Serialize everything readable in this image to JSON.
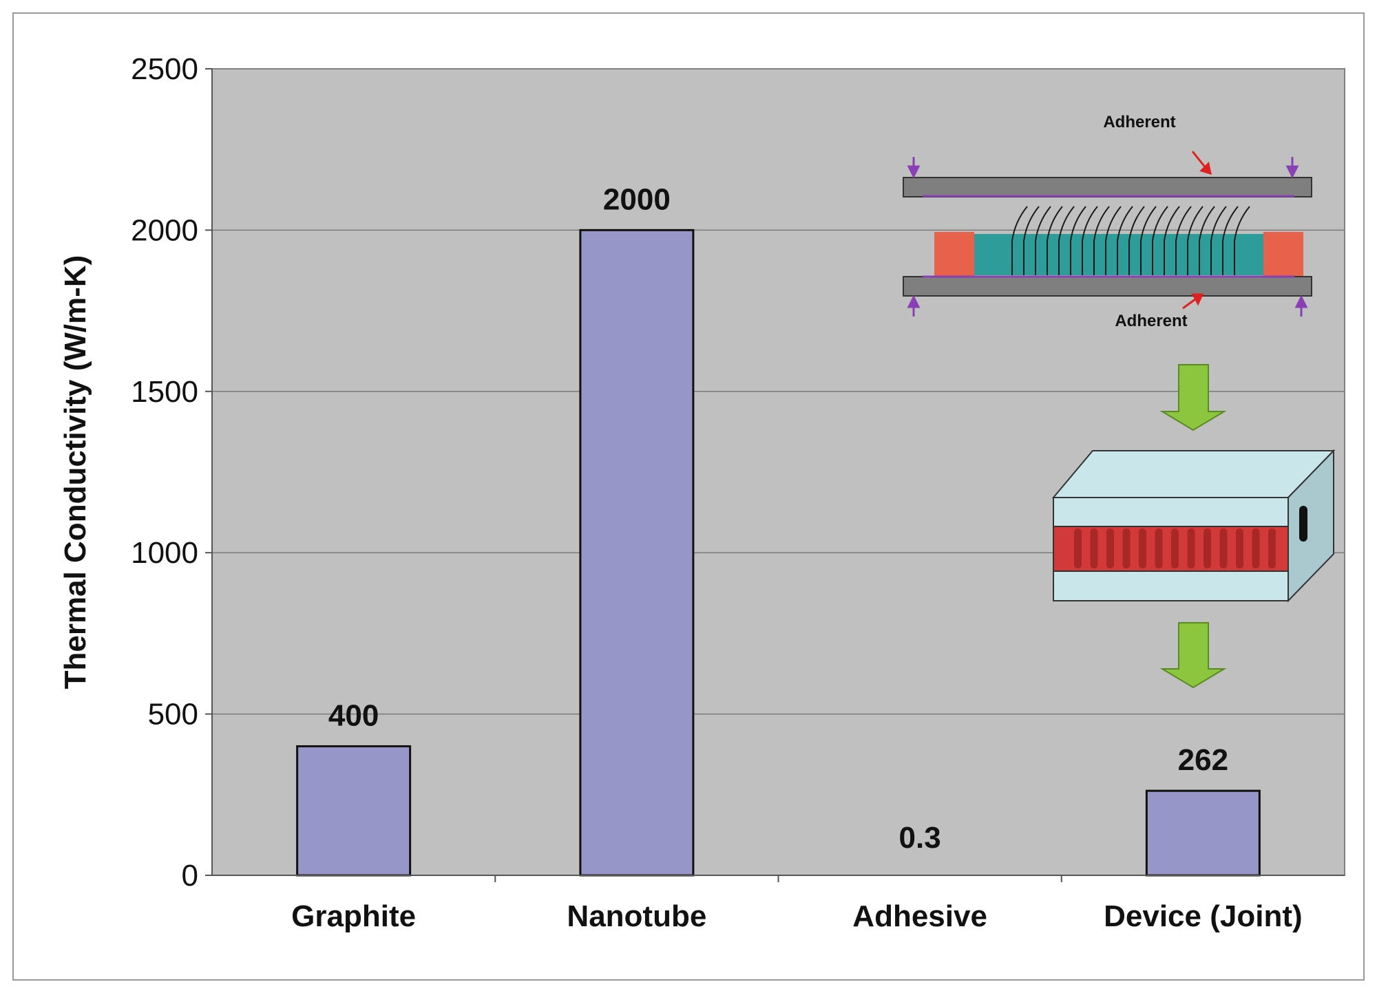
{
  "chart_data": {
    "type": "bar",
    "categories": [
      "Graphite",
      "Nanotube",
      "Adhesive",
      "Device (Joint)"
    ],
    "values": [
      400,
      2000,
      0.3,
      262
    ],
    "data_labels": [
      "400",
      "2000",
      "0.3",
      "262"
    ],
    "title": "",
    "xlabel": "",
    "ylabel": "Thermal Conductivity (W/m-K)",
    "ylim": [
      0,
      2500
    ],
    "yticks": [
      0,
      500,
      1000,
      1500,
      2000,
      2500
    ],
    "grid": true,
    "legend": "none",
    "plot_background": "#c0c0c0",
    "bar_color": "#9696c8"
  },
  "inset": {
    "adherent_top_label": "Adherent",
    "adherent_bottom_label": "Adherent",
    "colors": {
      "adherent": "#7f7f7f",
      "adhesive": "#e8614a",
      "nanotube_array": "#2e9c98",
      "arrow": "#8cc63f",
      "pressure_arrow": "#8a3fb5",
      "pointer": "#e02020",
      "device_plate": "#c9e6ea",
      "device_core": "#d23a3a"
    }
  }
}
